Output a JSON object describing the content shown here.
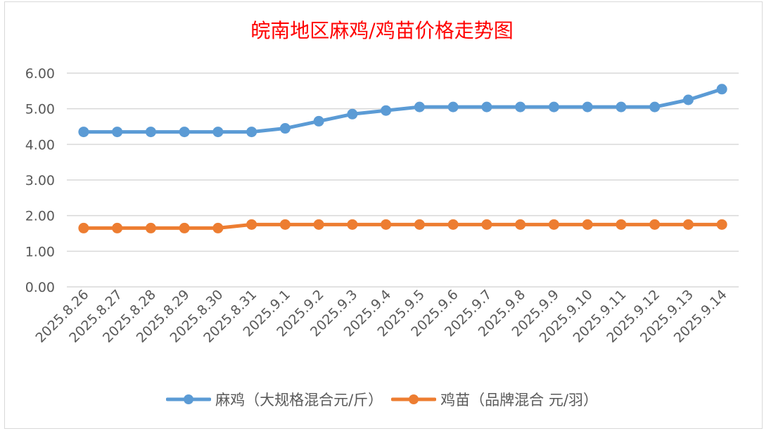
{
  "chart_data": {
    "type": "line",
    "title": "皖南地区麻鸡/鸡苗价格走势图",
    "xlabel": "",
    "ylabel": "",
    "ylim": [
      0,
      6
    ],
    "yticks": [
      "0.00",
      "1.00",
      "2.00",
      "3.00",
      "4.00",
      "5.00",
      "6.00"
    ],
    "grid": true,
    "legend_position": "bottom",
    "categories": [
      "2025.8.26",
      "2025.8.27",
      "2025.8.28",
      "2025.8.29",
      "2025.8.30",
      "2025.8.31",
      "2025.9.1",
      "2025.9.2",
      "2025.9.3",
      "2025.9.4",
      "2025.9.5",
      "2025.9.6",
      "2025.9.7",
      "2025.9.8",
      "2025.9.9",
      "2025.9.10",
      "2025.9.11",
      "2025.9.12",
      "2025.9.13",
      "2025.9.14"
    ],
    "series": [
      {
        "name": "麻鸡（大规格混合元/斤）",
        "color": "#5b9bd5",
        "values": [
          4.35,
          4.35,
          4.35,
          4.35,
          4.35,
          4.35,
          4.45,
          4.65,
          4.85,
          4.95,
          5.05,
          5.05,
          5.05,
          5.05,
          5.05,
          5.05,
          5.05,
          5.05,
          5.25,
          5.55
        ]
      },
      {
        "name": "鸡苗（品牌混合 元/羽）",
        "color": "#ed7d31",
        "values": [
          1.65,
          1.65,
          1.65,
          1.65,
          1.65,
          1.75,
          1.75,
          1.75,
          1.75,
          1.75,
          1.75,
          1.75,
          1.75,
          1.75,
          1.75,
          1.75,
          1.75,
          1.75,
          1.75,
          1.75
        ]
      }
    ]
  }
}
